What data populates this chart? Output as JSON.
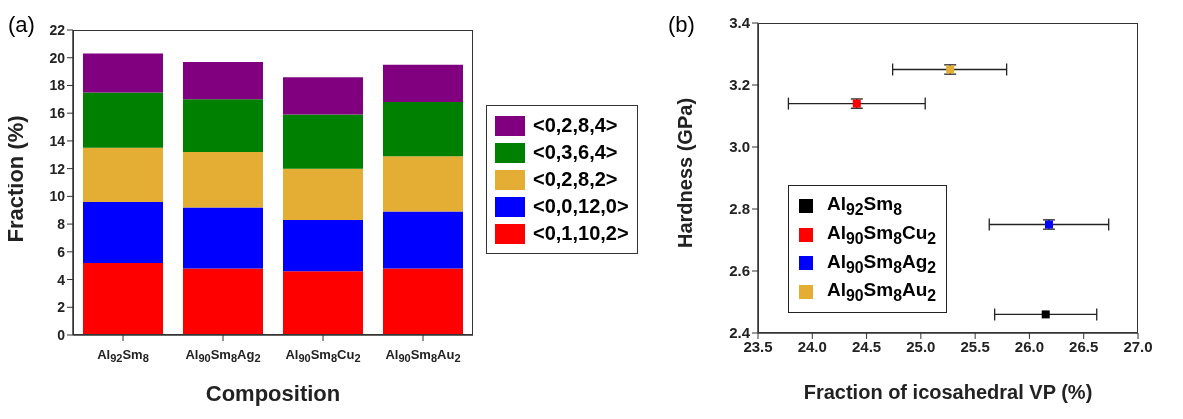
{
  "chart_data": [
    {
      "type": "bar",
      "stacked": true,
      "annotations": [
        "(a)"
      ],
      "xlabel": "Composition",
      "ylabel": "Fraction (%)",
      "categories": [
        "Al$_{92}$Sm$_{8}$",
        "Al$_{90}$Sm$_{8}$Ag$_{2}$",
        "Al$_{90}$Sm$_{8}$Cu$_{2}$",
        "Al$_{90}$Sm$_{8}$Au$_{2}$"
      ],
      "series": [
        {
          "name": "<0,1,10,2>",
          "color": "#ff0000",
          "values": [
            5.2,
            4.8,
            4.6,
            4.8
          ]
        },
        {
          "name": "<0,0,12,0>",
          "color": "#0000ff",
          "values": [
            4.4,
            4.4,
            3.7,
            4.1
          ]
        },
        {
          "name": "<0,2,8,2>",
          "color": "#e3ae33",
          "values": [
            3.9,
            4.0,
            3.7,
            4.0
          ]
        },
        {
          "name": "<0,3,6,4>",
          "color": "#008000",
          "values": [
            4.0,
            3.8,
            3.9,
            3.9
          ]
        },
        {
          "name": "<0,2,8,4>",
          "color": "#800080",
          "values": [
            2.8,
            2.7,
            2.7,
            2.7
          ]
        }
      ],
      "ylim": [
        0,
        22
      ],
      "yticks": [
        0,
        2,
        4,
        6,
        8,
        10,
        12,
        14,
        16,
        18,
        20,
        22
      ],
      "grid": false,
      "legend": "right"
    },
    {
      "type": "scatter",
      "annotations": [
        "(b)"
      ],
      "xlabel": "Fraction of icosahedral VP (%)",
      "ylabel": "Hardness (GPa)",
      "series": [
        {
          "name": "Al$_{92}$Sm$_{8}$",
          "color": "#000000",
          "x": [
            26.15
          ],
          "values": [
            2.46
          ],
          "xerrors": [
            [
              25.68,
              26.62
            ]
          ]
        },
        {
          "name": "Al$_{90}$Sm$_{8}$Cu$_{2}$",
          "color": "#ff0000",
          "x": [
            24.41
          ],
          "values": [
            3.14
          ],
          "xerrors": [
            [
              23.78,
              25.04
            ]
          ],
          "errors": [
            0.015
          ]
        },
        {
          "name": "Al$_{90}$Sm$_{8}$Ag$_{2}$",
          "color": "#0000ff",
          "x": [
            26.18
          ],
          "values": [
            2.75
          ],
          "xerrors": [
            [
              25.63,
              26.73
            ]
          ],
          "errors": [
            0.015
          ]
        },
        {
          "name": "Al$_{90}$Sm$_{8}$Au$_{2}$",
          "color": "#e3ae33",
          "x": [
            25.27
          ],
          "values": [
            3.25
          ],
          "xerrors": [
            [
              24.74,
              25.79
            ]
          ],
          "errors": [
            0.015
          ]
        }
      ],
      "xlim": [
        23.5,
        27.0
      ],
      "xticks": [
        23.5,
        {
          "value": 24,
          "label": "24.0"
        },
        24.5,
        {
          "value": 25,
          "label": "25.0"
        },
        25.5,
        {
          "value": 26,
          "label": "26.0"
        },
        26.5,
        {
          "value": 27,
          "label": "27.0"
        }
      ],
      "ylim": [
        2.4,
        3.4
      ],
      "yticks": [
        2.4,
        2.6,
        2.8,
        {
          "value": 3,
          "label": "3.0"
        },
        3.2,
        3.4
      ],
      "grid": false,
      "legend": "bottom left",
      "marker": "square"
    }
  ]
}
